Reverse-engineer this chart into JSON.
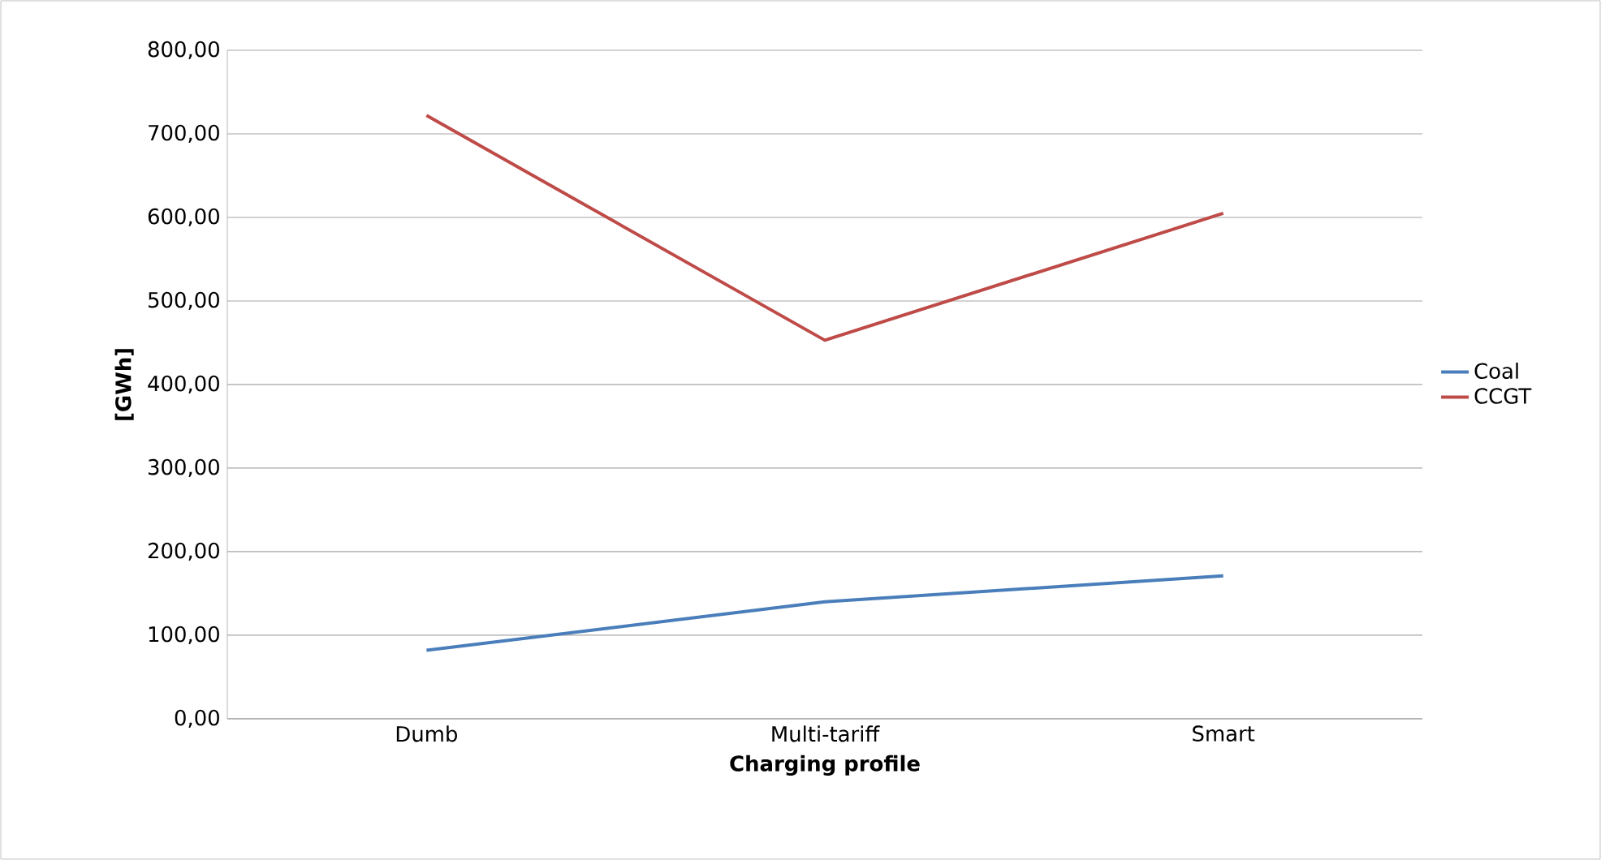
{
  "chart_data": {
    "type": "line",
    "xlabel": "Charging profile",
    "ylabel": "[GWh]",
    "categories": [
      "Dumb",
      "Multi-tariff",
      "Smart"
    ],
    "series": [
      {
        "name": "Coal",
        "color": "#4a7ebb",
        "values": [
          82,
          140,
          171
        ]
      },
      {
        "name": "CCGT",
        "color": "#be4b48",
        "values": [
          722,
          453,
          605
        ]
      }
    ],
    "ylim": [
      0,
      800
    ],
    "yticks": [
      {
        "value": 0,
        "label": "0,00"
      },
      {
        "value": 100,
        "label": "100,00"
      },
      {
        "value": 200,
        "label": "200,00"
      },
      {
        "value": 300,
        "label": "300,00"
      },
      {
        "value": 400,
        "label": "400,00"
      },
      {
        "value": 500,
        "label": "500,00"
      },
      {
        "value": 600,
        "label": "600,00"
      },
      {
        "value": 700,
        "label": "700,00"
      },
      {
        "value": 800,
        "label": "800,00"
      }
    ],
    "grid": "y",
    "legend": "right",
    "marker": "none",
    "line_style": "solid"
  }
}
